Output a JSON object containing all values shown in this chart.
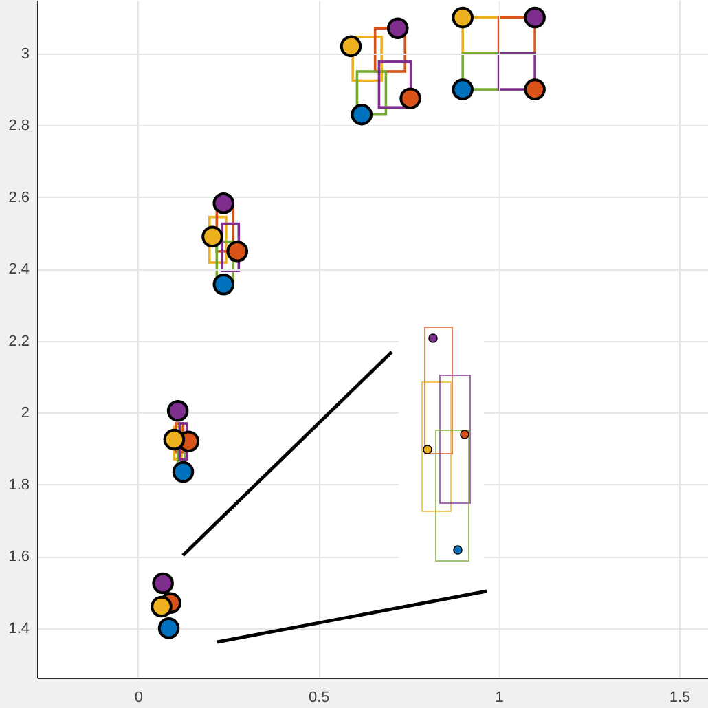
{
  "chart_data": {
    "type": "scatter",
    "xlim": [
      -0.28,
      1.58
    ],
    "ylim": [
      1.262,
      3.149
    ],
    "xticks": [
      0,
      0.5,
      1,
      1.5
    ],
    "yticks": [
      1.4,
      1.6,
      1.8,
      2,
      2.2,
      2.4,
      2.6,
      2.8,
      3
    ],
    "grid": true,
    "marker": "circle",
    "series": [
      {
        "color": "#0072bd",
        "x": [
          0.085,
          0.125,
          0.237,
          0.62,
          0.9
        ],
        "values": [
          1.4,
          1.835,
          2.357,
          2.83,
          2.9
        ]
      },
      {
        "color": "#d95319",
        "x": [
          0.09,
          0.14,
          0.275,
          0.755,
          1.1
        ],
        "values": [
          1.47,
          1.92,
          2.449,
          2.875,
          2.9
        ]
      },
      {
        "color": "#edb120",
        "x": [
          0.065,
          0.1,
          0.206,
          0.59,
          0.9
        ],
        "values": [
          1.46,
          1.925,
          2.49,
          3.02,
          3.1
        ]
      },
      {
        "color": "#7e2f8e",
        "x": [
          0.069,
          0.11,
          0.237,
          0.72,
          1.1
        ],
        "values": [
          1.525,
          2.005,
          2.583,
          3.07,
          3.1
        ]
      }
    ]
  }
}
